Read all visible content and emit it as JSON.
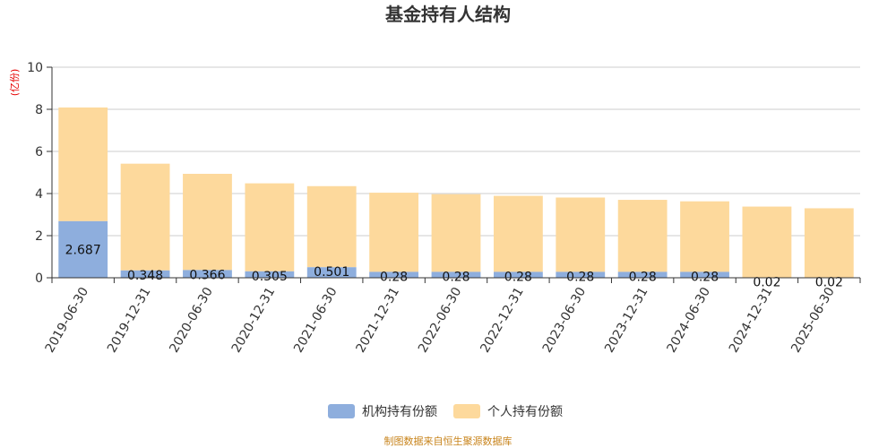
{
  "chart_data": {
    "type": "bar",
    "stacked": true,
    "title": "基金持有人结构",
    "ylabel": "(亿份)",
    "xlabel": "",
    "ylim": [
      0,
      10
    ],
    "yticks": [
      0,
      2,
      4,
      6,
      8,
      10
    ],
    "grid": true,
    "legend_position": "bottom",
    "categories": [
      "2019-06-30",
      "2019-12-31",
      "2020-06-30",
      "2020-12-31",
      "2021-06-30",
      "2021-12-31",
      "2022-06-30",
      "2022-12-31",
      "2023-06-30",
      "2023-12-31",
      "2024-06-30",
      "2024-12-31",
      "2025-06-30"
    ],
    "series": [
      {
        "name": "机构持有份额",
        "color": "#8eaedd",
        "values": [
          2.687,
          0.348,
          0.366,
          0.305,
          0.501,
          0.28,
          0.28,
          0.28,
          0.28,
          0.28,
          0.28,
          0.02,
          0.02
        ],
        "labels": [
          "2.687",
          "0.348",
          "0.366",
          "0.305",
          "0.501",
          "0.28",
          "0.28",
          "0.28",
          "0.28",
          "0.28",
          "0.28",
          "0.02",
          "0.02"
        ]
      },
      {
        "name": "个人持有份额",
        "color": "#fdd99c",
        "values": [
          5.4,
          5.07,
          4.57,
          4.18,
          3.85,
          3.76,
          3.69,
          3.61,
          3.53,
          3.42,
          3.35,
          3.36,
          3.28
        ]
      }
    ]
  },
  "source_text": "制图数据来自恒生聚源数据库"
}
